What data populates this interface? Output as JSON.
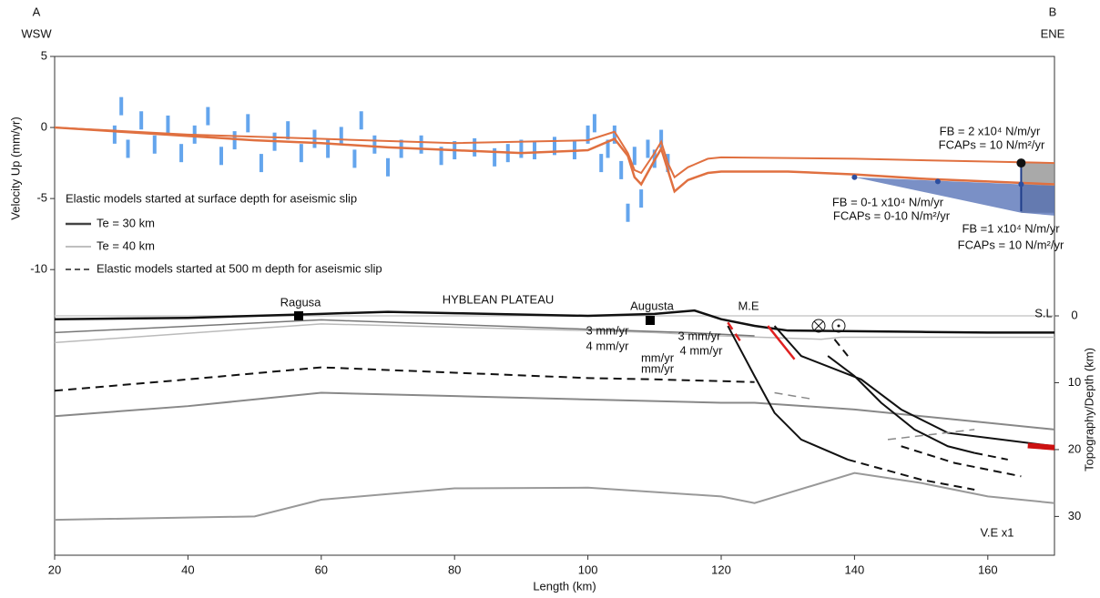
{
  "chart_data": {
    "type": "profile",
    "xlabel": "Length (km)",
    "ylabel": "Velocity Up (mm/yr)",
    "y2label": "Topography/Depth (km)",
    "xlim": [
      20,
      170
    ],
    "xticks": [
      20,
      40,
      60,
      80,
      100,
      120,
      140,
      160
    ],
    "ylim": [
      -30.1,
      5
    ],
    "yticks": [
      5,
      0,
      -5,
      -10
    ],
    "y2lim": [
      35.8,
      -38.8
    ],
    "y2ticks": [
      0,
      10,
      20,
      30
    ],
    "legend": {
      "title": "Elastic models started at surface depth for aseismic slip",
      "items": [
        {
          "label": "Te = 30 km",
          "color": "#444444",
          "width": 2.5,
          "dashed": false
        },
        {
          "label": "Te = 40 km",
          "color": "#999999",
          "width": 1.2,
          "dashed": false
        },
        {
          "label": "Elastic models started at 500 m depth for aseismic slip",
          "color": "#222222",
          "width": 1.5,
          "dashed": true
        }
      ]
    },
    "annotations": [
      "A",
      "WSW",
      "B",
      "ENE",
      "Ragusa",
      "HYBLEAN PLATEAU",
      "Augusta",
      "M.E",
      "S.L",
      "V.E x1",
      "FB = 2 x10⁴ N/m/yr",
      "FCAPs = 10 N/m²/yr",
      "FB = 0-1 x10⁴ N/m/yr",
      "FCAPs = 0-10 N/m²/yr",
      "FB =1 x10⁴ N/m/yr",
      "FCAPs = 10 N/m²/yr",
      "3 mm/yr",
      "4 mm/yr",
      "mm/yr",
      "mm/yr",
      "3 mm/yr",
      "4 mm/yr"
    ],
    "gps": {
      "color": "#3d8fe8",
      "x": [
        29,
        30,
        31,
        33,
        35,
        37,
        39,
        41,
        43,
        45,
        47,
        49,
        51,
        53,
        55,
        57,
        59,
        61,
        63,
        65,
        66,
        68,
        70,
        72,
        75,
        78,
        80,
        83,
        86,
        88,
        90,
        92,
        95,
        98,
        100,
        101,
        102,
        103,
        104,
        105,
        106,
        107,
        108,
        109,
        110,
        111,
        112
      ],
      "values": [
        -0.5,
        1.5,
        -1.5,
        0.5,
        -1.2,
        0.2,
        -1.8,
        -0.5,
        0.8,
        -2,
        -0.9,
        0.3,
        -2.5,
        -1,
        -0.2,
        -1.8,
        -0.8,
        -1.5,
        -0.6,
        -2.2,
        0.5,
        -1.2,
        -2.8,
        -1.5,
        -1.2,
        -2,
        -1.6,
        -1.4,
        -2.1,
        -1.8,
        -1.5,
        -1.6,
        -1.3,
        -1.6,
        -0.5,
        0.3,
        -2.5,
        -1.5,
        -0.5,
        -3,
        -6,
        -2,
        -5,
        -1.5,
        -2.2,
        -0.8,
        -2.5
      ]
    },
    "bands": [
      {
        "color": "#8c8c8c",
        "x": [
          165,
          170
        ],
        "upper": [
          -2.4,
          -2.5
        ],
        "lower": [
          -6,
          -6
        ]
      },
      {
        "color": "#4d6bb3",
        "x": [
          140,
          165,
          170
        ],
        "upper": [
          -3.5,
          -4,
          -4.1
        ],
        "lower": [
          -3.5,
          -6,
          -6.2
        ]
      }
    ],
    "series": [
      {
        "axis": "y",
        "style": "line",
        "color": "#e07040",
        "width": 2.5,
        "dashed": false,
        "x": [
          20,
          30,
          40,
          50,
          60,
          70,
          80,
          90,
          100,
          104,
          106,
          107,
          108,
          110,
          111,
          112,
          113,
          115,
          118,
          120,
          130,
          140,
          150,
          160,
          170
        ],
        "values": [
          0,
          -0.3,
          -0.6,
          -0.9,
          -1.1,
          -1.4,
          -1.6,
          -1.8,
          -1.6,
          -0.8,
          -2,
          -3.5,
          -4,
          -2.3,
          -1.5,
          -3,
          -4.5,
          -3.7,
          -3.2,
          -3.1,
          -3.1,
          -3.3,
          -3.6,
          -3.8,
          -4.0
        ]
      },
      {
        "axis": "y",
        "style": "line",
        "color": "#e07040",
        "width": 2,
        "dashed": false,
        "x": [
          20,
          40,
          60,
          80,
          100,
          104,
          106,
          107,
          108,
          110,
          111,
          112,
          113,
          115,
          118,
          120,
          140,
          160,
          170
        ],
        "values": [
          0,
          -0.5,
          -0.8,
          -1.1,
          -0.9,
          -0.3,
          -1.8,
          -3,
          -3.2,
          -1.8,
          -1,
          -2.5,
          -3.5,
          -2.8,
          -2.2,
          -2.1,
          -2.2,
          -2.4,
          -2.5
        ]
      },
      {
        "axis": "y",
        "style": "line",
        "color": "#1f3d8a",
        "width": 2,
        "dashed": false,
        "x": [
          165,
          165
        ],
        "values": [
          -2.5,
          -5.9
        ]
      },
      {
        "axis": "y",
        "style": "points",
        "color": "#2d4fa0",
        "size": 3,
        "x": [
          140,
          152.5,
          165
        ],
        "values": [
          -3.5,
          -3.8,
          -4.0
        ]
      },
      {
        "axis": "y",
        "style": "points",
        "color": "#111111",
        "size": 5,
        "x": [
          165
        ],
        "values": [
          -2.5
        ]
      },
      {
        "axis": "y2",
        "style": "line",
        "color": "#bbbbbb",
        "width": 1.5,
        "dashed": false,
        "x": [
          20,
          60,
          100,
          110,
          120,
          135,
          138,
          170
        ],
        "values": [
          4,
          1.2,
          2.2,
          2.5,
          3,
          3.5,
          3.2,
          3.2
        ]
      },
      {
        "axis": "y2",
        "style": "line",
        "color": "#777777",
        "width": 1.5,
        "dashed": false,
        "x": [
          20,
          60,
          100,
          115,
          125
        ],
        "values": [
          2.5,
          0.6,
          2,
          2.5,
          3
        ]
      },
      {
        "axis": "y2",
        "style": "line",
        "color": "#111111",
        "width": 2.5,
        "dashed": false,
        "x": [
          20,
          40,
          60,
          70,
          80,
          100,
          110,
          116,
          120,
          125,
          130,
          140,
          150,
          160,
          170
        ],
        "values": [
          0.5,
          0.3,
          -0.3,
          -0.6,
          -0.4,
          0,
          -0.3,
          -0.8,
          0.5,
          1.5,
          2.2,
          2.3,
          2.4,
          2.5,
          2.5
        ]
      },
      {
        "axis": "y2",
        "style": "line",
        "color": "#111111",
        "width": 2,
        "dashed": true,
        "x": [
          20,
          40,
          60,
          80,
          100,
          110,
          125
        ],
        "values": [
          11.2,
          9.5,
          7.7,
          8.5,
          9.3,
          9.5,
          9.9
        ]
      },
      {
        "axis": "y2",
        "style": "line",
        "color": "#888888",
        "width": 2,
        "dashed": false,
        "x": [
          20,
          40,
          60,
          80,
          100,
          120,
          125,
          140,
          160,
          170
        ],
        "values": [
          15,
          13.5,
          11.5,
          12,
          12.5,
          13,
          13,
          14,
          16,
          17
        ]
      },
      {
        "axis": "y2",
        "style": "line",
        "color": "#999999",
        "width": 2,
        "dashed": false,
        "x": [
          20,
          50,
          60,
          80,
          100,
          120,
          125,
          130,
          140,
          150,
          160,
          170
        ],
        "values": [
          30.5,
          30,
          27.5,
          25.8,
          25.7,
          27,
          28,
          26.5,
          23.5,
          25,
          27,
          28
        ]
      },
      {
        "axis": "y2",
        "style": "line",
        "color": "#111111",
        "width": 2,
        "dashed": false,
        "x": [
          121,
          125,
          128,
          132,
          139
        ],
        "values": [
          1.5,
          9,
          14.5,
          18.5,
          21.5
        ]
      },
      {
        "axis": "y2",
        "style": "line",
        "color": "#111111",
        "width": 2,
        "dashed": true,
        "x": [
          139,
          150,
          158
        ],
        "values": [
          21.5,
          24.5,
          26
        ]
      },
      {
        "axis": "y2",
        "style": "line",
        "color": "#111111",
        "width": 2,
        "dashed": false,
        "x": [
          128,
          132,
          141,
          147,
          154,
          162,
          170
        ],
        "values": [
          1.5,
          6,
          9.5,
          14,
          17.5,
          18.5,
          19.5
        ]
      },
      {
        "axis": "y2",
        "style": "line",
        "color": "#111111",
        "width": 2,
        "dashed": true,
        "x": [
          147,
          155,
          165
        ],
        "values": [
          19.5,
          22,
          24
        ]
      },
      {
        "axis": "y2",
        "style": "line",
        "color": "#111111",
        "width": 2,
        "dashed": false,
        "x": [
          136,
          140,
          144,
          149,
          154,
          158
        ],
        "values": [
          6,
          9,
          13,
          17,
          19.5,
          20.5
        ]
      },
      {
        "axis": "y2",
        "style": "line",
        "color": "#111111",
        "width": 2,
        "dashed": true,
        "x": [
          137,
          139
        ],
        "values": [
          3.5,
          6
        ]
      },
      {
        "axis": "y2",
        "style": "line",
        "color": "#111111",
        "width": 2,
        "dashed": true,
        "x": [
          158,
          163
        ],
        "values": [
          20.5,
          21.5
        ]
      },
      {
        "axis": "y2",
        "style": "line",
        "color": "#888888",
        "width": 1.5,
        "dashed": true,
        "x": [
          128,
          134
        ],
        "values": [
          11.5,
          12.5
        ]
      },
      {
        "axis": "y2",
        "style": "line",
        "color": "#888888",
        "width": 1.5,
        "dashed": true,
        "x": [
          145,
          158
        ],
        "values": [
          18.5,
          17
        ]
      },
      {
        "axis": "y2",
        "style": "line",
        "color": "#e02020",
        "width": 2.5,
        "dashed": true,
        "x": [
          121,
          123
        ],
        "values": [
          1,
          4
        ]
      },
      {
        "axis": "y2",
        "style": "line",
        "color": "#e02020",
        "width": 2.5,
        "dashed": false,
        "x": [
          127,
          131
        ],
        "values": [
          1.5,
          6.5
        ]
      },
      {
        "axis": "y2",
        "style": "line",
        "color": "#cc1111",
        "width": 6,
        "dashed": false,
        "x": [
          166,
          170
        ],
        "values": [
          19.4,
          19.7
        ]
      }
    ]
  }
}
